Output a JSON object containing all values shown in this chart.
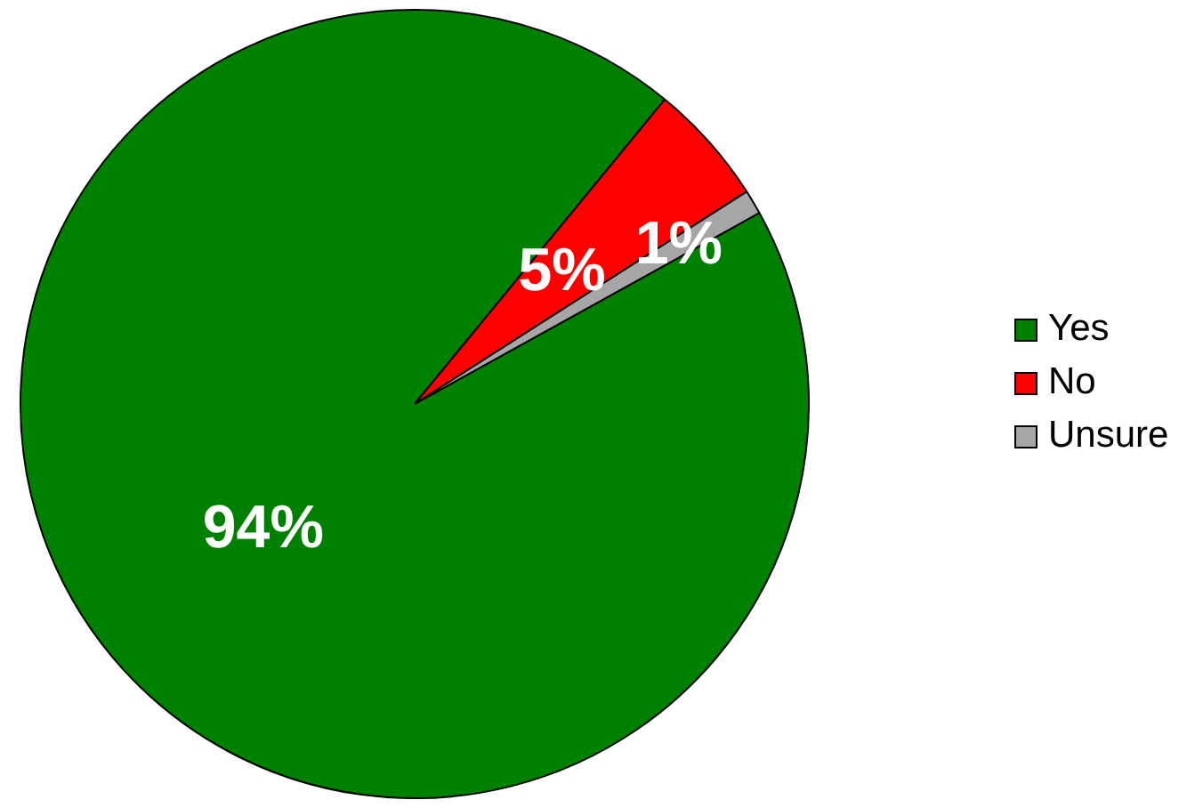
{
  "chart_data": {
    "type": "pie",
    "categories": [
      "Yes",
      "No",
      "Unsure"
    ],
    "values": [
      94,
      5,
      1
    ],
    "colors": [
      "#008000",
      "#ff0000",
      "#a6a6a6"
    ],
    "value_labels": [
      "94%",
      "5%",
      "1%"
    ],
    "legend": "right"
  }
}
